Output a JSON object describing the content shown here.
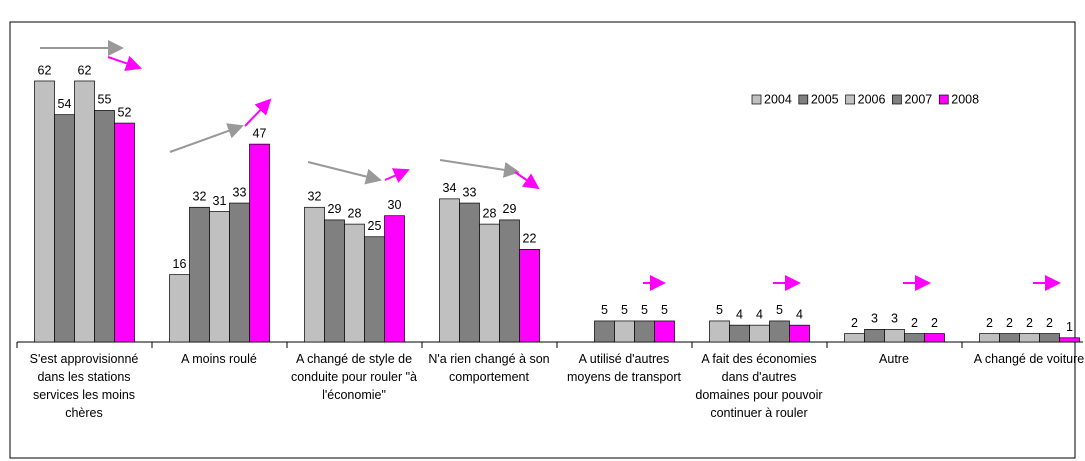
{
  "chart_data": {
    "type": "bar",
    "categories": [
      "S'est approvisionné dans les stations services les moins chères",
      "A moins roulé",
      "A changé de style de conduite pour rouler \"à l'économie\"",
      "N'a rien changé à son comportement",
      "A utilisé d'autres moyens de transport",
      "A fait des économies dans d'autres domaines pour pouvoir continuer à rouler",
      "Autre",
      "A changé de voiture"
    ],
    "series": [
      {
        "name": "2004",
        "color": "#c0c0c0",
        "values": [
          62,
          16,
          32,
          34,
          null,
          5,
          2,
          2
        ]
      },
      {
        "name": "2005",
        "color": "#808080",
        "values": [
          54,
          32,
          29,
          33,
          5,
          4,
          3,
          2
        ]
      },
      {
        "name": "2006",
        "color": "#c0c0c0",
        "values": [
          62,
          31,
          28,
          28,
          5,
          4,
          3,
          2
        ]
      },
      {
        "name": "2007",
        "color": "#808080",
        "values": [
          55,
          33,
          25,
          29,
          5,
          5,
          2,
          2
        ]
      },
      {
        "name": "2008",
        "color": "#ff00ff",
        "values": [
          52,
          47,
          30,
          22,
          5,
          4,
          2,
          1
        ]
      }
    ],
    "legend": "top-right"
  }
}
